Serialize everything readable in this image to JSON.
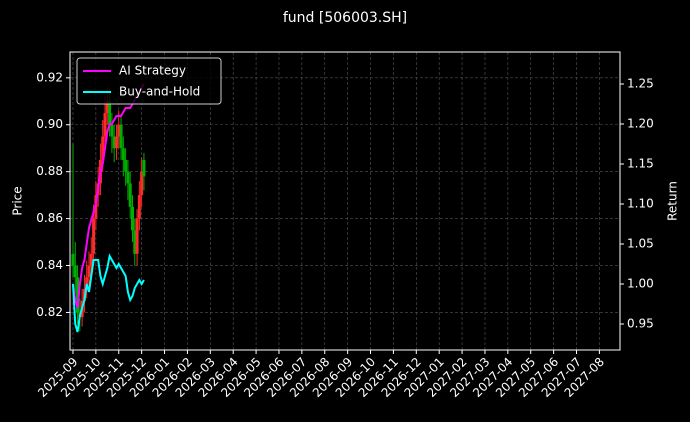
{
  "chart_data": {
    "type": "candlestick",
    "title": "fund [506003.SH]",
    "y_label": "Price",
    "y2_label": "Return",
    "grid": true,
    "legend": "upper left",
    "up_color": "#ff2a2a",
    "down_color": "#00b000",
    "x": [
      0,
      0.1,
      0.2,
      0.3,
      0.4,
      0.5,
      0.6,
      0.7,
      0.8,
      0.9,
      1.0,
      1.1,
      1.2,
      1.3,
      1.4,
      1.5,
      1.6,
      1.7,
      1.8,
      1.9,
      2.0,
      2.1,
      2.2,
      2.3,
      2.4,
      2.5,
      2.6,
      2.7,
      2.8,
      2.9,
      3.0,
      3.1
    ],
    "open": [
      0.845,
      0.84,
      0.835,
      0.82,
      0.818,
      0.825,
      0.83,
      0.835,
      0.84,
      0.845,
      0.86,
      0.87,
      0.875,
      0.885,
      0.895,
      0.905,
      0.91,
      0.9,
      0.895,
      0.89,
      0.895,
      0.9,
      0.89,
      0.885,
      0.88,
      0.875,
      0.865,
      0.855,
      0.845,
      0.86,
      0.87,
      0.885
    ],
    "high": [
      0.892,
      0.85,
      0.84,
      0.826,
      0.83,
      0.836,
      0.842,
      0.846,
      0.852,
      0.866,
      0.876,
      0.882,
      0.892,
      0.902,
      0.912,
      0.916,
      0.915,
      0.905,
      0.9,
      0.9,
      0.906,
      0.904,
      0.895,
      0.89,
      0.885,
      0.88,
      0.87,
      0.86,
      0.864,
      0.876,
      0.886,
      0.888
    ],
    "low": [
      0.835,
      0.828,
      0.815,
      0.812,
      0.814,
      0.82,
      0.826,
      0.83,
      0.835,
      0.84,
      0.855,
      0.865,
      0.87,
      0.88,
      0.89,
      0.9,
      0.895,
      0.888,
      0.884,
      0.885,
      0.89,
      0.885,
      0.878,
      0.874,
      0.868,
      0.86,
      0.85,
      0.84,
      0.84,
      0.855,
      0.865,
      0.872
    ],
    "close": [
      0.84,
      0.835,
      0.82,
      0.818,
      0.825,
      0.83,
      0.835,
      0.84,
      0.845,
      0.86,
      0.87,
      0.875,
      0.885,
      0.895,
      0.905,
      0.91,
      0.9,
      0.895,
      0.89,
      0.895,
      0.9,
      0.89,
      0.885,
      0.88,
      0.875,
      0.865,
      0.855,
      0.845,
      0.86,
      0.87,
      0.88,
      0.878
    ],
    "series": [
      {
        "name": "AI Strategy",
        "color": "#ff00ff",
        "axis": "y2",
        "values": [
          1.0,
          0.98,
          0.97,
          1.0,
          1.02,
          1.03,
          1.05,
          1.07,
          1.08,
          1.09,
          1.1,
          1.12,
          1.14,
          1.15,
          1.17,
          1.19,
          1.2,
          1.2,
          1.205,
          1.21,
          1.21,
          1.21,
          1.215,
          1.22,
          1.22,
          1.22,
          1.225,
          1.23,
          1.235,
          1.24,
          1.245,
          1.25
        ]
      },
      {
        "name": "Buy-and-Hold",
        "color": "#00ffff",
        "axis": "y2",
        "values": [
          1.0,
          0.95,
          0.94,
          0.96,
          0.97,
          0.98,
          1.0,
          0.99,
          1.01,
          1.03,
          1.03,
          1.03,
          1.01,
          1.0,
          1.01,
          1.02,
          1.035,
          1.03,
          1.025,
          1.02,
          1.025,
          1.02,
          1.015,
          1.01,
          0.99,
          0.98,
          0.985,
          0.995,
          1.0,
          1.005,
          1.0,
          1.005
        ]
      }
    ],
    "xlim": [
      -0.13,
      23.9
    ],
    "xticks": [
      {
        "value": 0,
        "label": "2025-09"
      },
      {
        "value": 1,
        "label": "2025-10"
      },
      {
        "value": 2,
        "label": "2025-11"
      },
      {
        "value": 3,
        "label": "2025-12"
      },
      {
        "value": 4,
        "label": "2026-01"
      },
      {
        "value": 5,
        "label": "2026-02"
      },
      {
        "value": 6,
        "label": "2026-03"
      },
      {
        "value": 7,
        "label": "2026-04"
      },
      {
        "value": 8,
        "label": "2026-05"
      },
      {
        "value": 9,
        "label": "2026-06"
      },
      {
        "value": 10,
        "label": "2026-07"
      },
      {
        "value": 11,
        "label": "2026-08"
      },
      {
        "value": 12,
        "label": "2026-09"
      },
      {
        "value": 13,
        "label": "2026-10"
      },
      {
        "value": 14,
        "label": "2026-11"
      },
      {
        "value": 15,
        "label": "2026-12"
      },
      {
        "value": 16,
        "label": "2027-01"
      },
      {
        "value": 17,
        "label": "2027-02"
      },
      {
        "value": 18,
        "label": "2027-03"
      },
      {
        "value": 19,
        "label": "2027-04"
      },
      {
        "value": 20,
        "label": "2027-05"
      },
      {
        "value": 21,
        "label": "2027-06"
      },
      {
        "value": 22,
        "label": "2027-07"
      },
      {
        "value": 23,
        "label": "2027-08"
      }
    ],
    "ylim": [
      0.804,
      0.931
    ],
    "yticks": [
      0.82,
      0.84,
      0.86,
      0.88,
      {
        "value": 0.9,
        "label": "0.90"
      },
      0.92
    ],
    "y2lim": [
      0.9175,
      1.29
    ],
    "y2ticks": [
      0.95,
      {
        "value": 1.0,
        "label": "1.00"
      },
      1.05,
      {
        "value": 1.1,
        "label": "1.10"
      },
      1.15,
      {
        "value": 1.2,
        "label": "1.20"
      },
      1.25
    ]
  }
}
